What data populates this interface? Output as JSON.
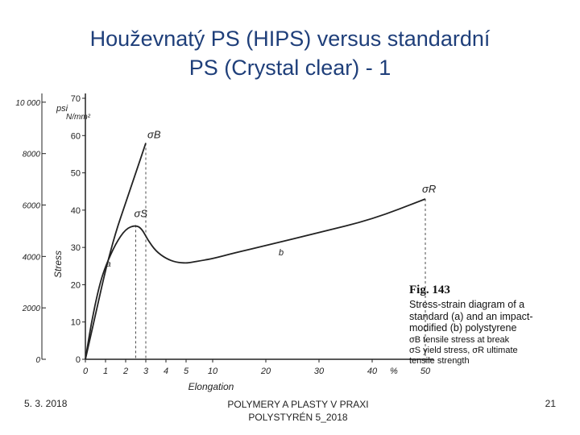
{
  "slide": {
    "title_line1": "Houževnatý PS (HIPS) versus standardní",
    "title_line2": "PS (Crystal clear) - 1",
    "footer_date": "5. 3. 2018",
    "footer_center_line1": "POLYMERY A PLASTY V PRAXI",
    "footer_center_line2": "POLYSTYRÉN 5_2018",
    "page_number": "21"
  },
  "caption": {
    "fig_no": "Fig. 143",
    "text": "Stress-strain diagram of a standard (a) and an impact-modified (b) polystyrene",
    "note1": "σB tensile stress at break",
    "note2": "σS yield stress, σR ultimate tensile strength"
  },
  "colors": {
    "title": "#1f3f7a",
    "ink": "#222222"
  },
  "chart_data": {
    "type": "line",
    "title": "",
    "xlabel": "Elongation",
    "x_unit": "%",
    "ylabel": "Stress",
    "y_unit_left": "psi",
    "y_unit_right": "N/mm²",
    "x_ticks": [
      "0",
      "1",
      "2",
      "3",
      "4",
      "5",
      "10",
      "20",
      "30",
      "40",
      "50"
    ],
    "y_ticks_nmm2": [
      0,
      10,
      20,
      30,
      40,
      50,
      60,
      70
    ],
    "y_ticks_psi": [
      0,
      2000,
      4000,
      6000,
      8000,
      10000
    ],
    "y_ticks_psi_labels": [
      "0",
      "2000",
      "4000",
      "6000",
      "8000",
      "10 000"
    ],
    "ylim": [
      0,
      70
    ],
    "grid": false,
    "series": [
      {
        "name": "a",
        "x": [
          0,
          0.5,
          1,
          1.5,
          2,
          2.5,
          3
        ],
        "y": [
          0,
          12,
          24,
          34,
          42,
          50,
          58
        ]
      },
      {
        "name": "b",
        "x": [
          0,
          0.3,
          0.7,
          1,
          1.5,
          2,
          2.5,
          2.8,
          3.1,
          3.5,
          4,
          4.5,
          5,
          6,
          8,
          10,
          14,
          20,
          30,
          40,
          50
        ],
        "y": [
          0,
          10,
          20,
          25,
          31,
          35,
          36,
          35,
          32,
          29,
          27,
          26,
          25.8,
          26,
          26.5,
          27,
          28.5,
          30.5,
          34,
          37.5,
          43
        ]
      }
    ],
    "annotations": [
      {
        "label": "σB",
        "x": 3,
        "y": 58
      },
      {
        "label": "σS",
        "x": 2.5,
        "y": 36
      },
      {
        "label": "σR",
        "x": 50,
        "y": 43
      }
    ]
  }
}
